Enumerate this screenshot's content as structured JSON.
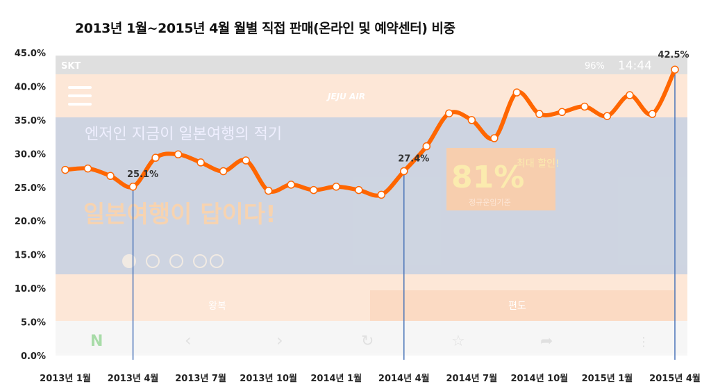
{
  "chart_data": {
    "type": "line",
    "title": "2013년 1월~2015년 4월 월별 직접 판매(온라인 및 예약센터) 비중",
    "xlabel": "",
    "ylabel": "",
    "ylim": [
      0,
      45
    ],
    "yticks": [
      "0.0%",
      "5.0%",
      "10.0%",
      "15.0%",
      "20.0%",
      "25.0%",
      "30.0%",
      "35.0%",
      "40.0%",
      "45.0%"
    ],
    "x": [
      "2013-01",
      "2013-02",
      "2013-03",
      "2013-04",
      "2013-05",
      "2013-06",
      "2013-07",
      "2013-08",
      "2013-09",
      "2013-10",
      "2013-11",
      "2013-12",
      "2014-01",
      "2014-02",
      "2014-03",
      "2014-04",
      "2014-05",
      "2014-06",
      "2014-07",
      "2014-08",
      "2014-09",
      "2014-10",
      "2014-11",
      "2014-12",
      "2015-01",
      "2015-02",
      "2015-03",
      "2015-04"
    ],
    "xtick_labels": [
      {
        "index": 0,
        "label": "2013년 1월"
      },
      {
        "index": 3,
        "label": "2013년 4월"
      },
      {
        "index": 6,
        "label": "2013년 7월"
      },
      {
        "index": 9,
        "label": "2013년 10월"
      },
      {
        "index": 12,
        "label": "2014년 1월"
      },
      {
        "index": 15,
        "label": "2014년 4월"
      },
      {
        "index": 18,
        "label": "2014년 7월"
      },
      {
        "index": 21,
        "label": "2014년 10월"
      },
      {
        "index": 24,
        "label": "2015년 1월"
      },
      {
        "index": 27,
        "label": "2015년 4월"
      }
    ],
    "values": [
      27.6,
      27.8,
      26.7,
      25.1,
      29.4,
      29.9,
      28.7,
      27.4,
      29.0,
      24.5,
      25.4,
      24.6,
      25.1,
      24.6,
      23.9,
      27.4,
      31.1,
      36.0,
      35.0,
      32.3,
      39.1,
      35.9,
      36.2,
      37.0,
      35.6,
      38.7,
      35.9,
      42.5
    ],
    "annotations": [
      {
        "index": 3,
        "label": "25.1%"
      },
      {
        "index": 15,
        "label": "27.4%"
      },
      {
        "index": 27,
        "label": "42.5%"
      }
    ],
    "grid": false,
    "legend": "none",
    "colors": {
      "line": "#ff6600",
      "marker_fill": "#ffffff",
      "annotation_line": "#4a74b8"
    }
  },
  "background_screenshot": {
    "carrier": "SKT",
    "battery": "96%",
    "time": "14:44",
    "brand": "JEJU AIR",
    "headline_small": "엔저인 지금이 일본여행의 적기",
    "headline": "일본여행이 답이다!",
    "promo_big": "81%",
    "promo_small": "최대 할인!",
    "promo_note": "정규운임기준",
    "tab_round": "왕복",
    "tab_oneway": "편도",
    "colors": {
      "status": "#dcdcdc",
      "header": "#fde5d3",
      "banner": "#c9d0de",
      "tabs": "#fde5d3",
      "nav": "#f6f6f6"
    }
  }
}
